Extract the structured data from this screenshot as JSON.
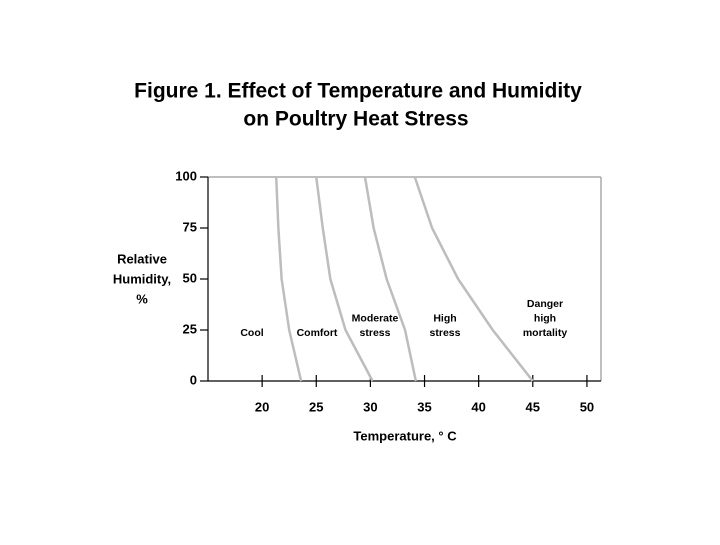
{
  "chart_data": {
    "type": "line",
    "title": [
      "Figure 1. Effect of Temperature and Humidity",
      "on Poultry Heat Stress"
    ],
    "x_label": "Temperature, ° C",
    "y_label": [
      "Relative",
      "Humidity,",
      "%"
    ],
    "xlim": [
      15,
      51.3
    ],
    "ylim": [
      0,
      100
    ],
    "xticks": [
      20,
      25,
      30,
      35,
      40,
      45,
      50
    ],
    "yticks": [
      0,
      25,
      50,
      75,
      100
    ],
    "color": "#bdbdbd",
    "series": [
      {
        "x": [
          21.3,
          21.5,
          21.8,
          22.5,
          23.6
        ],
        "values": [
          100,
          75,
          50,
          25,
          0
        ]
      },
      {
        "x": [
          25.0,
          25.6,
          26.3,
          27.7,
          30.2
        ],
        "values": [
          100,
          75,
          50,
          25,
          0
        ]
      },
      {
        "x": [
          29.5,
          30.3,
          31.5,
          33.2,
          34.2
        ],
        "values": [
          100,
          75,
          50,
          25,
          0
        ]
      },
      {
        "x": [
          34.1,
          35.7,
          38.1,
          41.3,
          45.0
        ],
        "values": [
          100,
          75,
          50,
          25,
          0
        ]
      }
    ],
    "annotations": [
      [
        "Cool"
      ],
      [
        "Comfort"
      ],
      [
        "Moderate",
        "stress"
      ],
      [
        "High",
        "stress"
      ],
      [
        "Danger",
        "high",
        "mortality"
      ]
    ]
  }
}
